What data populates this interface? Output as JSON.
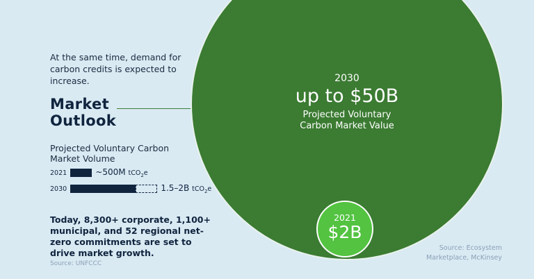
{
  "intro": "At the same time, demand for carbon credits is expected to increase.",
  "heading": {
    "line1": "Market",
    "line2": "Outlook"
  },
  "volume": {
    "title": "Projected Voluntary Carbon Market Volume"
  },
  "stats": "Today, 8,300+ corporate, 1,100+ municipal, and 52 regional net-zero commitments are set to drive market growth.",
  "sources": {
    "left": "Source: UNFCCC",
    "right": "Source: Ecosystem Marketplace, McKinsey"
  },
  "value_circles": {
    "big": {
      "year": "2030",
      "value": "up to $50B",
      "desc1": "Projected Voluntary",
      "desc2": "Carbon Market Value"
    },
    "small": {
      "year": "2021",
      "value": "$2B"
    }
  },
  "colors": {
    "background": "#d9eaf3",
    "navy": "#10243e",
    "dark_green": "#3b7b32",
    "bright_green": "#53c341",
    "source_gray": "#8aa0b5"
  },
  "chart_data": [
    {
      "type": "bar",
      "title": "Projected Voluntary Carbon Market Volume",
      "categories": [
        "2021",
        "2030"
      ],
      "series": [
        {
          "values": [
            500,
            1500
          ]
        },
        {
          "values": [
            0,
            500
          ]
        }
      ],
      "value_labels": [
        "~500M",
        "1.5–2B"
      ],
      "unit": "tCO2e",
      "unit_parts": {
        "main": "tCO",
        "subscript": "2",
        "suffix": "e"
      },
      "orientation": "horizontal",
      "xlim": [
        0,
        2000
      ]
    },
    {
      "type": "bubble",
      "title": "Projected Voluntary Carbon Market Value",
      "categories": [
        "2021",
        "2030"
      ],
      "values": [
        2,
        50
      ],
      "value_labels": [
        "$2B",
        "up to $50B"
      ],
      "unit": "USD billions"
    }
  ]
}
